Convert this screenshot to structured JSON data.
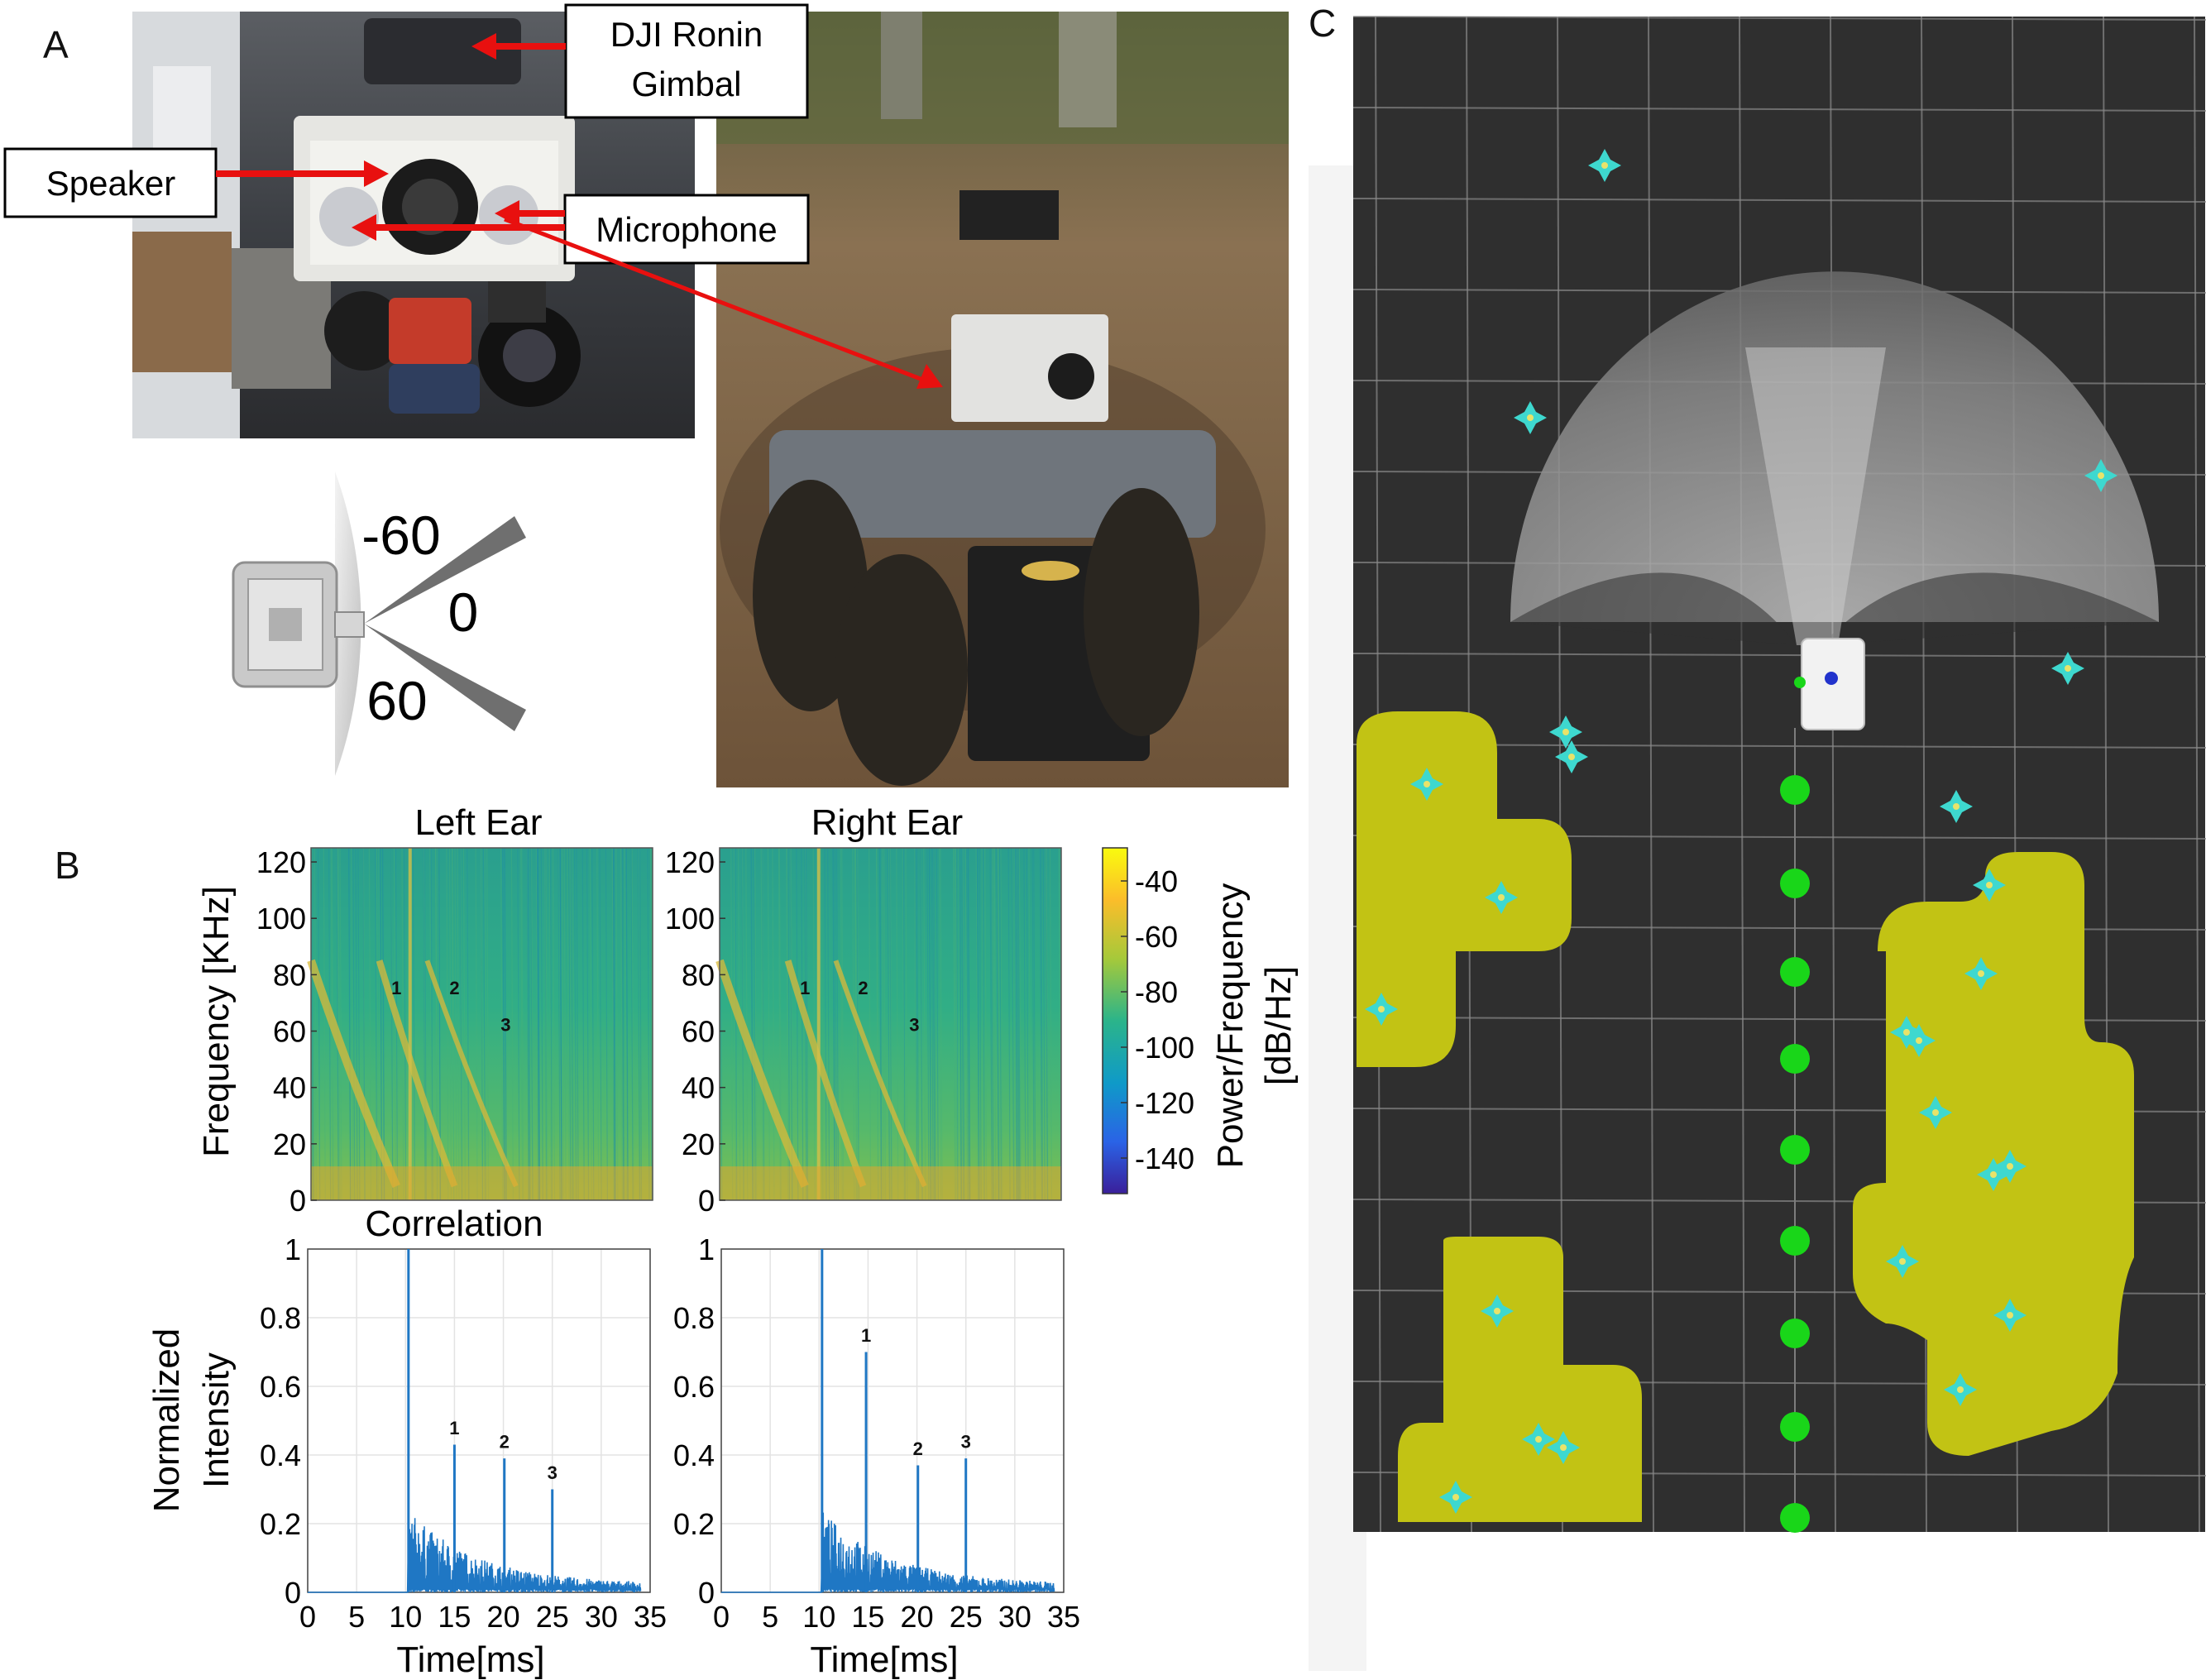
{
  "panel_letters": {
    "a": "A",
    "b": "B",
    "c": "C"
  },
  "panel_a": {
    "callouts": {
      "gimbal_line1": "DJI Ronin",
      "gimbal_line2": "Gimbal",
      "speaker": "Speaker",
      "microphone": "Microphone"
    },
    "angles": {
      "neg": "-60",
      "zero": "0",
      "pos": "60"
    }
  },
  "panel_b": {
    "colorbar": {
      "label_line1": "Power/Frequency",
      "label_line2": "[dB/Hz]",
      "ticks": [
        "-40",
        "-60",
        "-80",
        "-100",
        "-120",
        "-140"
      ]
    },
    "spectro_ylabel": "Frequency [KHz]",
    "corr_ylabel_line1": "Normalized",
    "corr_ylabel_line2": "Intensity",
    "xlabel": "Time[ms]",
    "corr_title": "Correlation"
  },
  "chart_data": [
    {
      "type": "heatmap",
      "title": "Left Ear",
      "xlabel": "",
      "ylabel": "Frequency [KHz]",
      "yticks": [
        0,
        20,
        40,
        60,
        80,
        100,
        120
      ],
      "ylim": [
        0,
        125
      ],
      "color_range_db": [
        -150,
        -35
      ],
      "annotations": [
        {
          "text": "1",
          "x_frac": 0.25,
          "freq": 73
        },
        {
          "text": "2",
          "x_frac": 0.42,
          "freq": 73
        },
        {
          "text": "3",
          "x_frac": 0.57,
          "freq": 60
        }
      ]
    },
    {
      "type": "heatmap",
      "title": "Right Ear",
      "xlabel": "",
      "ylabel": "",
      "yticks": [
        0,
        20,
        40,
        60,
        80,
        100,
        120
      ],
      "ylim": [
        0,
        125
      ],
      "color_range_db": [
        -150,
        -35
      ],
      "annotations": [
        {
          "text": "1",
          "x_frac": 0.25,
          "freq": 73
        },
        {
          "text": "2",
          "x_frac": 0.42,
          "freq": 73
        },
        {
          "text": "3",
          "x_frac": 0.57,
          "freq": 60
        }
      ]
    },
    {
      "type": "line",
      "title": "Correlation",
      "xlabel": "Time[ms]",
      "ylabel": "Normalized Intensity",
      "xticks": [
        0,
        5,
        10,
        15,
        20,
        25,
        30,
        35
      ],
      "yticks": [
        0,
        0.2,
        0.4,
        0.6,
        0.8,
        1
      ],
      "xlim": [
        0,
        35
      ],
      "ylim": [
        0,
        1
      ],
      "grid": true,
      "series": [
        {
          "peaks": [
            {
              "x": 10.3,
              "y": 1.0
            },
            {
              "x": 15.0,
              "y": 0.43
            },
            {
              "x": 20.1,
              "y": 0.39
            },
            {
              "x": 25.0,
              "y": 0.3
            }
          ]
        }
      ],
      "annotations": [
        {
          "text": "1",
          "x": 15.0,
          "y": 0.46
        },
        {
          "text": "2",
          "x": 20.1,
          "y": 0.42
        },
        {
          "text": "3",
          "x": 25.0,
          "y": 0.33
        }
      ]
    },
    {
      "type": "line",
      "title": "",
      "xlabel": "Time[ms]",
      "ylabel": "",
      "xticks": [
        0,
        5,
        10,
        15,
        20,
        25,
        30,
        35
      ],
      "yticks": [
        0,
        0.2,
        0.4,
        0.6,
        0.8,
        1
      ],
      "xlim": [
        0,
        35
      ],
      "ylim": [
        0,
        1
      ],
      "grid": true,
      "series": [
        {
          "peaks": [
            {
              "x": 10.3,
              "y": 1.0
            },
            {
              "x": 14.8,
              "y": 0.7
            },
            {
              "x": 20.1,
              "y": 0.37
            },
            {
              "x": 25.0,
              "y": 0.39
            }
          ]
        }
      ],
      "annotations": [
        {
          "text": "1",
          "x": 14.8,
          "y": 0.73
        },
        {
          "text": "2",
          "x": 20.1,
          "y": 0.4
        },
        {
          "text": "3",
          "x": 25.0,
          "y": 0.42
        }
      ]
    }
  ],
  "colors": {
    "arrow": "#e8100f",
    "line_series": "#1f77c4",
    "map_bg": "#2f2f2f",
    "map_obstacle": "#c2c314",
    "map_marker": "#3ed8cf",
    "map_path": "#19d619"
  }
}
